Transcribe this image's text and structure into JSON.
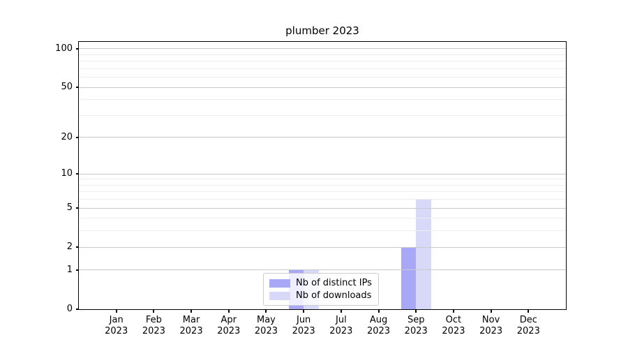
{
  "chart_data": {
    "type": "bar",
    "title": "plumber 2023",
    "categories": [
      "Jan 2023",
      "Feb 2023",
      "Mar 2023",
      "Apr 2023",
      "May 2023",
      "Jun 2023",
      "Jul 2023",
      "Aug 2023",
      "Sep 2023",
      "Oct 2023",
      "Nov 2023",
      "Dec 2023"
    ],
    "series": [
      {
        "name": "Nb of distinct IPs",
        "color": "#a8a8f7",
        "values": [
          0,
          0,
          0,
          0,
          0,
          1,
          0,
          0,
          2,
          0,
          0,
          0
        ]
      },
      {
        "name": "Nb of downloads",
        "color": "#d8d8f9",
        "values": [
          0,
          0,
          0,
          0,
          0,
          1,
          0,
          0,
          6,
          0,
          0,
          0
        ]
      }
    ],
    "xlabel": "",
    "ylabel": "",
    "y_axis": {
      "scale": "log1p",
      "ticks": [
        0,
        1,
        2,
        5,
        10,
        20,
        50,
        100
      ],
      "minor_gridlines": [
        3,
        4,
        6,
        7,
        8,
        9,
        30,
        40,
        60,
        70,
        80,
        90
      ],
      "range": [
        0,
        113
      ]
    },
    "grid": "both",
    "grid_above_bars": true,
    "legend": {
      "position": "lower center",
      "entries": [
        "Nb of distinct IPs",
        "Nb of downloads"
      ]
    }
  },
  "colors": {
    "background": "#ffffff",
    "spine": "#000000",
    "major_grid": "#c9c9c9",
    "minor_grid": "#ededed",
    "legend_border": "#cccccc",
    "distinct_ips": "#a8a8f7",
    "downloads": "#d8d8f9"
  }
}
